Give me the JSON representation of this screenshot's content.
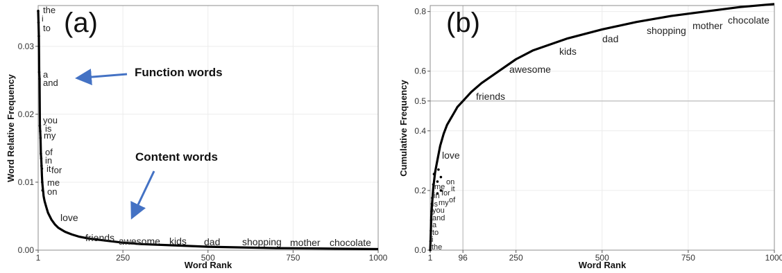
{
  "chart_data": [
    {
      "type": "line",
      "panel_label": "(a)",
      "xlabel": "Word Rank",
      "ylabel": "Word Relative Frequency",
      "xlim": [
        1,
        1000
      ],
      "ylim": [
        0,
        0.036
      ],
      "x_ticks": [
        1,
        250,
        500,
        750,
        1000
      ],
      "x_tick_labels": [
        "1",
        "250",
        "500",
        "750",
        "1000"
      ],
      "y_ticks": [
        0,
        0.01,
        0.02,
        0.03
      ],
      "y_tick_labels": [
        "0.00",
        "0.01",
        "0.02",
        "0.03"
      ],
      "grid": true,
      "series": [
        {
          "x": [
            1,
            2,
            3,
            4,
            5,
            6,
            7,
            8,
            9,
            10,
            11,
            12,
            13,
            14,
            15,
            16,
            17,
            18,
            20,
            25,
            30,
            40,
            50,
            60,
            70,
            80,
            90,
            100,
            120,
            150,
            200,
            250,
            300,
            400,
            500,
            600,
            700,
            800,
            900,
            1000
          ],
          "y": [
            0.0352,
            0.0335,
            0.0315,
            0.0262,
            0.0252,
            0.0183,
            0.0175,
            0.0165,
            0.0142,
            0.0135,
            0.0124,
            0.011,
            0.01,
            0.0094,
            0.0089,
            0.0085,
            0.008,
            0.0077,
            0.0072,
            0.0063,
            0.0055,
            0.0045,
            0.0038,
            0.0033,
            0.003,
            0.0027,
            0.0025,
            0.0023,
            0.002,
            0.0017,
            0.0014,
            0.0011,
            0.0009,
            0.0007,
            0.0005,
            0.0004,
            0.0003,
            0.00025,
            0.0002,
            0.00015
          ]
        }
      ],
      "point_labels": [
        {
          "text": "the",
          "x": 1,
          "y": 0.0352
        },
        {
          "text": "i",
          "x": 2,
          "y": 0.0335
        },
        {
          "text": "to",
          "x": 3,
          "y": 0.0315
        },
        {
          "text": "a",
          "x": 4,
          "y": 0.0262
        },
        {
          "text": "and",
          "x": 5,
          "y": 0.0252
        },
        {
          "text": "you",
          "x": 6,
          "y": 0.0183
        },
        {
          "text": "is",
          "x": 7,
          "y": 0.0175
        },
        {
          "text": "my",
          "x": 8,
          "y": 0.0165
        },
        {
          "text": "of",
          "x": 9,
          "y": 0.0142
        },
        {
          "text": "in",
          "x": 10,
          "y": 0.0135
        },
        {
          "text": "it",
          "x": 11,
          "y": 0.0124
        },
        {
          "text": "for",
          "x": 12,
          "y": 0.012
        },
        {
          "text": "me",
          "x": 13,
          "y": 0.01
        },
        {
          "text": "on",
          "x": 14,
          "y": 0.0088
        },
        {
          "text": "love",
          "x": 70,
          "y": 0.0045
        },
        {
          "text": "friends",
          "x": 150,
          "y": 0.0018
        },
        {
          "text": "awesome",
          "x": 250,
          "y": 0.0012
        },
        {
          "text": "kids",
          "x": 390,
          "y": 0.0012
        },
        {
          "text": "dad",
          "x": 530,
          "y": 0.0011
        },
        {
          "text": "shopping",
          "x": 700,
          "y": 0.0011
        },
        {
          "text": "mother",
          "x": 830,
          "y": 0.001
        },
        {
          "text": "chocolate",
          "x": 980,
          "y": 0.001
        }
      ],
      "annotations": [
        {
          "text": "Function words"
        },
        {
          "text": "Content words"
        }
      ]
    },
    {
      "type": "line",
      "panel_label": "(b)",
      "xlabel": "Word Rank",
      "ylabel": "Cumulative Frequency",
      "xlim": [
        1,
        1000
      ],
      "ylim": [
        0,
        0.82
      ],
      "x_ticks": [
        1,
        96,
        250,
        500,
        750,
        1000
      ],
      "x_tick_labels": [
        "1",
        "96",
        "250",
        "500",
        "750",
        "1000"
      ],
      "y_ticks": [
        0,
        0.2,
        0.4,
        0.5,
        0.6,
        0.8
      ],
      "y_tick_labels": [
        "0.0",
        "0.2",
        "0.4",
        "0.5",
        "0.6",
        "0.8"
      ],
      "reference_lines": {
        "x": 96,
        "y": 0.5
      },
      "grid": true,
      "series": [
        {
          "x": [
            1,
            2,
            3,
            4,
            5,
            6,
            8,
            10,
            12,
            15,
            20,
            25,
            30,
            40,
            50,
            60,
            70,
            80,
            96,
            120,
            150,
            200,
            250,
            300,
            400,
            500,
            600,
            700,
            800,
            900,
            1000
          ],
          "y": [
            0.0,
            0.03,
            0.07,
            0.11,
            0.13,
            0.15,
            0.18,
            0.21,
            0.23,
            0.26,
            0.29,
            0.32,
            0.35,
            0.39,
            0.42,
            0.44,
            0.46,
            0.48,
            0.5,
            0.53,
            0.56,
            0.6,
            0.64,
            0.67,
            0.71,
            0.74,
            0.765,
            0.785,
            0.8,
            0.815,
            0.825
          ]
        }
      ],
      "point_labels": [
        {
          "text": "the",
          "x": 1,
          "y": 0.0
        },
        {
          "text": "i",
          "x": 2,
          "y": 0.03
        },
        {
          "text": "to",
          "x": 3,
          "y": 0.065
        },
        {
          "text": "a",
          "x": 4,
          "y": 0.1
        },
        {
          "text": "and",
          "x": 5,
          "y": 0.13
        },
        {
          "text": "you",
          "x": 6,
          "y": 0.155
        },
        {
          "text": "is",
          "x": 7,
          "y": 0.175
        },
        {
          "text": "my",
          "x": 22,
          "y": 0.19
        },
        {
          "text": "of",
          "x": 32,
          "y": 0.2
        },
        {
          "text": "in",
          "x": 10,
          "y": 0.22
        },
        {
          "text": "for",
          "x": 22,
          "y": 0.23
        },
        {
          "text": "it",
          "x": 32,
          "y": 0.245
        },
        {
          "text": "me",
          "x": 12,
          "y": 0.255
        },
        {
          "text": "on",
          "x": 25,
          "y": 0.27
        },
        {
          "text": "love",
          "x": 30,
          "y": 0.35
        },
        {
          "text": "friends",
          "x": 115,
          "y": 0.52
        },
        {
          "text": "awesome",
          "x": 220,
          "y": 0.635
        },
        {
          "text": "kids",
          "x": 380,
          "y": 0.71
        },
        {
          "text": "dad",
          "x": 505,
          "y": 0.745
        },
        {
          "text": "shopping",
          "x": 670,
          "y": 0.77
        },
        {
          "text": "mother",
          "x": 835,
          "y": 0.79
        },
        {
          "text": "chocolate",
          "x": 960,
          "y": 0.805
        }
      ]
    }
  ]
}
